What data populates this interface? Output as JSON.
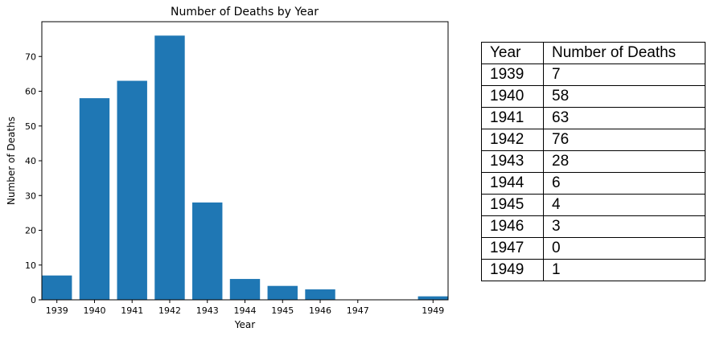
{
  "chart_data": {
    "type": "bar",
    "title": "Number of Deaths by Year",
    "xlabel": "Year",
    "ylabel": "Number of Deaths",
    "x": [
      1939,
      1940,
      1941,
      1942,
      1943,
      1944,
      1945,
      1946,
      1947,
      1949
    ],
    "categories": [
      "1939",
      "1940",
      "1941",
      "1942",
      "1943",
      "1944",
      "1945",
      "1946",
      "1947",
      "1949"
    ],
    "values": [
      7,
      58,
      63,
      76,
      28,
      6,
      4,
      3,
      0,
      1
    ],
    "xlim": [
      1938.6,
      1949.4
    ],
    "ylim": [
      0,
      80
    ],
    "yticks": [
      0,
      10,
      20,
      30,
      40,
      50,
      60,
      70
    ],
    "bar_color": "#1f77b4",
    "grid": false,
    "legend": "none"
  },
  "table": {
    "headers": [
      "Year",
      "Number of Deaths"
    ],
    "rows": [
      [
        "1939",
        "7"
      ],
      [
        "1940",
        "58"
      ],
      [
        "1941",
        "63"
      ],
      [
        "1942",
        "76"
      ],
      [
        "1943",
        "28"
      ],
      [
        "1944",
        "6"
      ],
      [
        "1945",
        "4"
      ],
      [
        "1946",
        "3"
      ],
      [
        "1947",
        "0"
      ],
      [
        "1949",
        "1"
      ]
    ]
  }
}
